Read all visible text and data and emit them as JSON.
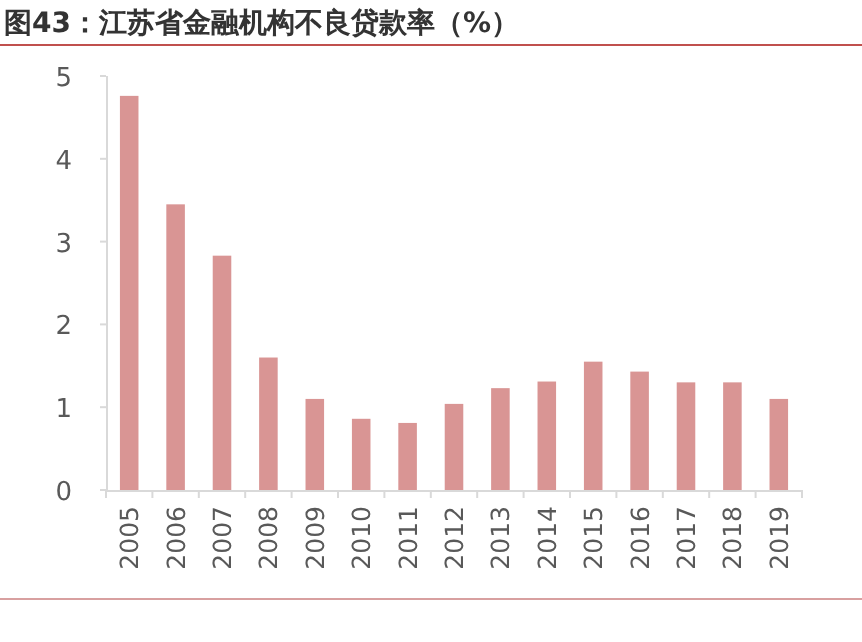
{
  "chart_data": {
    "type": "bar",
    "title": "图43：江苏省金融机构不良贷款率（%）",
    "categories": [
      "2005",
      "2006",
      "2007",
      "2008",
      "2009",
      "2010",
      "2011",
      "2012",
      "2013",
      "2014",
      "2015",
      "2016",
      "2017",
      "2018",
      "2019"
    ],
    "values": [
      4.76,
      3.45,
      2.83,
      1.6,
      1.1,
      0.86,
      0.81,
      1.04,
      1.23,
      1.31,
      1.55,
      1.43,
      1.3,
      1.3,
      1.1
    ],
    "color": "#d99594",
    "ylim": [
      0,
      5
    ],
    "yticks": [
      0,
      1,
      2,
      3,
      4,
      5
    ],
    "grid": false
  }
}
